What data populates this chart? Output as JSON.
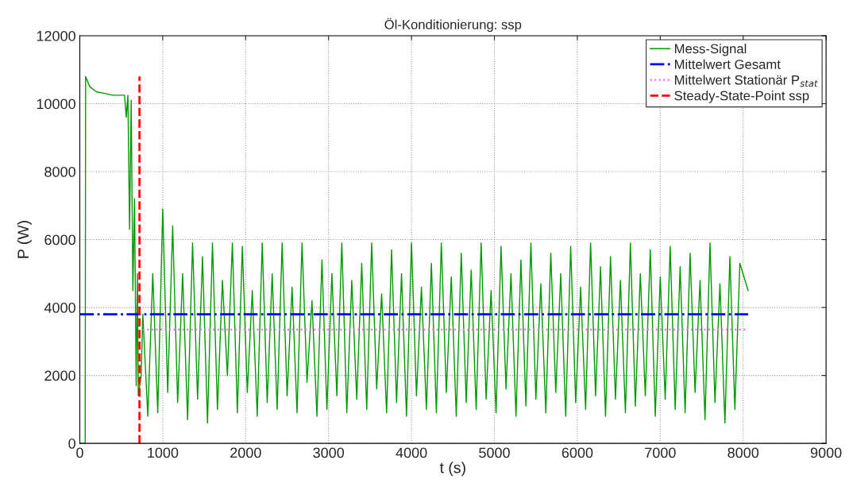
{
  "chart_data": {
    "type": "line",
    "title": "Öl-Konditionierung: ssp",
    "xlabel": "t (s)",
    "ylabel": "P (W)",
    "xlim": [
      0,
      9000
    ],
    "xticks": [
      0,
      1000,
      2000,
      3000,
      4000,
      5000,
      6000,
      7000,
      8000,
      9000
    ],
    "ylim": [
      0,
      12000
    ],
    "yticks": [
      0,
      2000,
      4000,
      6000,
      8000,
      10000,
      12000
    ],
    "grid": true,
    "legend": "top right",
    "series": [
      {
        "name": "Mess-Signal",
        "color": "#009900",
        "line_style": "solid",
        "x": [
          0,
          65,
          70,
          120,
          200,
          300,
          400,
          540,
          560,
          580,
          600,
          620,
          640,
          660,
          680,
          695,
          705,
          740,
          760,
          820,
          880,
          940,
          1000,
          1060,
          1120,
          1180,
          1240,
          1300,
          1360,
          1420,
          1480,
          1540,
          1600,
          1660,
          1720,
          1780,
          1840,
          1900,
          1960,
          2020,
          2080,
          2140,
          2200,
          2260,
          2320,
          2380,
          2440,
          2500,
          2560,
          2620,
          2680,
          2740,
          2800,
          2860,
          2920,
          2980,
          3040,
          3100,
          3160,
          3220,
          3280,
          3340,
          3400,
          3460,
          3520,
          3580,
          3640,
          3700,
          3760,
          3820,
          3880,
          3940,
          4000,
          4060,
          4120,
          4180,
          4240,
          4300,
          4360,
          4420,
          4480,
          4540,
          4600,
          4660,
          4720,
          4780,
          4840,
          4900,
          4960,
          5020,
          5080,
          5140,
          5200,
          5260,
          5320,
          5380,
          5440,
          5500,
          5560,
          5620,
          5680,
          5740,
          5800,
          5860,
          5920,
          5980,
          6040,
          6100,
          6160,
          6220,
          6280,
          6340,
          6400,
          6460,
          6520,
          6580,
          6640,
          6700,
          6760,
          6820,
          6880,
          6940,
          7000,
          7060,
          7120,
          7180,
          7240,
          7300,
          7360,
          7420,
          7480,
          7540,
          7600,
          7660,
          7720,
          7780,
          7840,
          7900,
          7960,
          8060
        ],
        "values": [
          0,
          0,
          10800,
          10500,
          10350,
          10300,
          10250,
          10250,
          9600,
          10250,
          6300,
          10100,
          4500,
          7200,
          1700,
          5000,
          1400,
          2000,
          3800,
          800,
          5000,
          900,
          6900,
          1500,
          6400,
          1200,
          5000,
          700,
          5900,
          1300,
          5500,
          600,
          5900,
          1000,
          4800,
          2000,
          5900,
          900,
          5800,
          1500,
          4500,
          800,
          5900,
          1200,
          5000,
          1000,
          5900,
          1400,
          4600,
          900,
          5900,
          1800,
          4200,
          800,
          5400,
          1000,
          5000,
          1400,
          5900,
          900,
          4800,
          1300,
          5300,
          1000,
          5900,
          1600,
          4400,
          900,
          5700,
          1200,
          5000,
          800,
          5900,
          1400,
          4600,
          1000,
          5300,
          900,
          5900,
          1500,
          4900,
          800,
          5600,
          1200,
          5100,
          1000,
          5900,
          1300,
          4500,
          900,
          5800,
          1600,
          5000,
          800,
          5400,
          1100,
          5900,
          1300,
          4700,
          900,
          5600,
          1500,
          5000,
          800,
          5800,
          1200,
          4600,
          1000,
          5900,
          1400,
          5200,
          800,
          5500,
          1300,
          4800,
          900,
          5900,
          1100,
          5000,
          1400,
          5700,
          800,
          4900,
          1300,
          5800,
          1000,
          5200,
          900,
          5600,
          1500,
          4800,
          700,
          5900,
          1200,
          4700,
          600,
          5500,
          1000,
          5300,
          4500
        ]
      },
      {
        "name": "Mittelwert Gesamt",
        "color": "#0000ff",
        "line_style": "dashdot",
        "x": [
          0,
          8060
        ],
        "values": [
          3800,
          3800
        ]
      },
      {
        "name": "Mittelwert Stationär P$_{stat}$",
        "color": "#ff66ff",
        "line_style": "dotted",
        "x": [
          760,
          8060
        ],
        "values": [
          3350,
          3350
        ]
      },
      {
        "name": "Steady-State-Point ssp",
        "color": "#ff0000",
        "line_style": "dashed",
        "x": [
          720,
          720
        ],
        "values": [
          0,
          10800
        ]
      }
    ]
  }
}
